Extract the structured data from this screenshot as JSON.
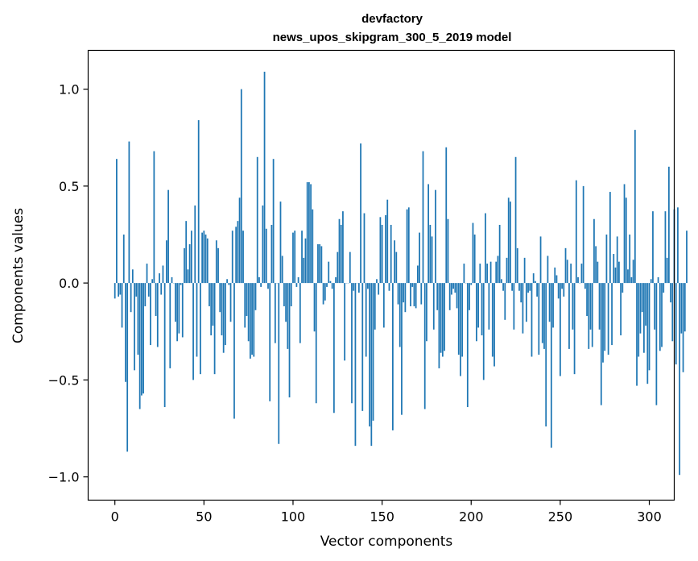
{
  "chart_data": {
    "type": "bar",
    "title_line1": "devfactory",
    "title_line2": "news_upos_skipgram_300_5_2019 model",
    "xlabel": "Vector components",
    "ylabel": "Components values",
    "xlim": [
      -15,
      314
    ],
    "ylim": [
      -1.12,
      1.2
    ],
    "xticks": [
      0,
      50,
      100,
      150,
      200,
      250,
      300
    ],
    "yticks": [
      -1.0,
      -0.5,
      0.0,
      0.5,
      1.0
    ],
    "ytick_labels": [
      "−1.0",
      "−0.5",
      "0.0",
      "0.5",
      "1.0"
    ],
    "bar_color": "#1f77b4",
    "grid": false,
    "values": [
      -0.08,
      0.64,
      -0.07,
      -0.06,
      -0.23,
      0.25,
      -0.51,
      -0.87,
      0.73,
      -0.15,
      0.07,
      -0.45,
      -0.07,
      -0.37,
      -0.65,
      -0.58,
      -0.57,
      -0.12,
      0.1,
      -0.07,
      -0.32,
      0.02,
      0.68,
      -0.17,
      -0.33,
      0.05,
      -0.06,
      0.09,
      -0.64,
      0.22,
      0.48,
      -0.44,
      0.03,
      0.0,
      -0.2,
      -0.3,
      -0.26,
      -0.01,
      -0.28,
      0.18,
      0.32,
      0.07,
      0.2,
      0.27,
      -0.5,
      0.4,
      -0.38,
      0.84,
      -0.47,
      0.26,
      0.27,
      0.25,
      0.23,
      -0.12,
      -0.27,
      -0.22,
      -0.47,
      0.22,
      0.18,
      -0.15,
      -0.27,
      -0.36,
      -0.32,
      0.02,
      -0.01,
      -0.2,
      0.27,
      -0.7,
      0.29,
      0.32,
      0.44,
      1.0,
      0.27,
      -0.23,
      -0.17,
      -0.3,
      -0.39,
      -0.37,
      -0.38,
      -0.14,
      0.65,
      0.03,
      -0.02,
      0.4,
      1.09,
      0.28,
      -0.03,
      -0.61,
      0.3,
      0.64,
      -0.31,
      0.0,
      -0.83,
      0.42,
      0.14,
      -0.12,
      -0.2,
      -0.34,
      -0.59,
      -0.12,
      0.26,
      0.27,
      -0.02,
      0.03,
      -0.31,
      0.27,
      0.13,
      0.23,
      0.52,
      0.52,
      0.51,
      0.38,
      -0.25,
      -0.62,
      0.2,
      0.2,
      0.19,
      -0.11,
      -0.09,
      -0.02,
      0.11,
      0.01,
      -0.03,
      -0.67,
      0.03,
      0.16,
      0.33,
      0.3,
      0.37,
      -0.4,
      0.0,
      0.0,
      0.16,
      -0.62,
      -0.04,
      -0.84,
      0.0,
      -0.05,
      0.72,
      -0.66,
      0.36,
      -0.38,
      -0.03,
      -0.74,
      -0.84,
      -0.71,
      -0.24,
      0.02,
      -0.06,
      0.34,
      0.3,
      -0.23,
      0.35,
      0.43,
      -0.04,
      0.3,
      -0.76,
      0.22,
      0.16,
      -0.11,
      -0.33,
      -0.68,
      -0.1,
      -0.15,
      0.38,
      0.39,
      -0.12,
      -0.02,
      -0.12,
      -0.13,
      0.09,
      0.26,
      -0.11,
      0.68,
      -0.65,
      -0.3,
      0.51,
      0.3,
      0.24,
      -0.24,
      0.48,
      -0.14,
      -0.44,
      -0.36,
      -0.38,
      -0.35,
      0.7,
      0.33,
      -0.14,
      -0.06,
      -0.03,
      -0.05,
      -0.13,
      -0.37,
      -0.48,
      -0.38,
      0.1,
      0.0,
      -0.64,
      -0.14,
      -0.01,
      0.31,
      0.25,
      -0.3,
      -0.23,
      0.1,
      -0.27,
      -0.5,
      0.36,
      0.1,
      -0.24,
      0.11,
      -0.38,
      -0.43,
      0.11,
      0.14,
      0.3,
      0.02,
      -0.04,
      -0.19,
      0.13,
      0.44,
      0.42,
      -0.04,
      -0.24,
      0.65,
      0.18,
      -0.04,
      -0.1,
      -0.26,
      0.13,
      -0.2,
      -0.05,
      -0.04,
      -0.38,
      0.05,
      0.01,
      -0.07,
      -0.37,
      0.24,
      -0.31,
      -0.34,
      -0.74,
      0.14,
      -0.2,
      -0.85,
      -0.23,
      0.08,
      0.04,
      -0.08,
      -0.48,
      -0.03,
      -0.07,
      0.18,
      0.12,
      -0.34,
      0.1,
      -0.24,
      -0.47,
      0.53,
      0.03,
      0.0,
      0.1,
      0.5,
      -0.03,
      -0.17,
      -0.34,
      -0.24,
      -0.33,
      0.33,
      0.19,
      0.11,
      -0.24,
      -0.63,
      -0.41,
      -0.35,
      0.25,
      -0.37,
      0.47,
      -0.32,
      0.15,
      0.08,
      0.24,
      0.11,
      -0.27,
      -0.05,
      0.51,
      0.44,
      0.07,
      0.25,
      0.03,
      0.12,
      0.79,
      -0.53,
      -0.38,
      -0.26,
      -0.15,
      -0.36,
      -0.22,
      -0.52,
      -0.45,
      0.02,
      0.37,
      -0.24,
      -0.63,
      0.03,
      -0.35,
      -0.33,
      -0.05,
      0.37,
      0.13,
      0.6,
      -0.1,
      -0.3,
      0.38,
      -0.42,
      0.39,
      -0.99,
      -0.26,
      -0.46,
      -0.25,
      0.27
    ]
  }
}
